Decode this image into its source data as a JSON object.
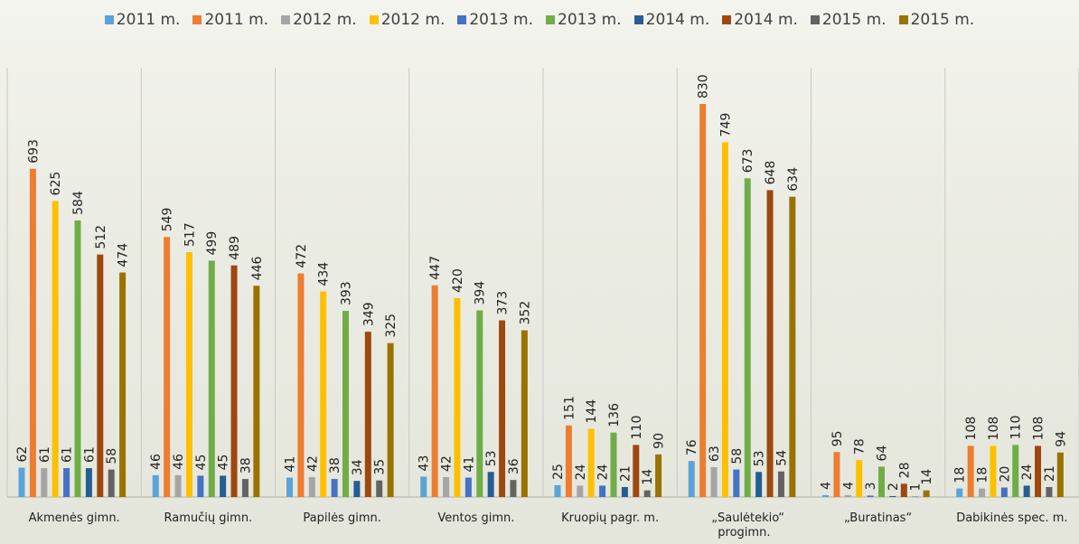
{
  "chart_data": {
    "type": "bar",
    "categories": [
      "Akmenės gimn.",
      "Ramučių gimn.",
      "Papilės gimn.",
      "Ventos gimn.",
      "Kruopių pagr. m.",
      "„Saulėtekio“ progimn.",
      "„Buratinas“",
      "Dabikinės spec. m."
    ],
    "series": [
      {
        "name": "2011 m.",
        "color": "#5ba3d9",
        "values": [
          62,
          46,
          41,
          43,
          25,
          76,
          4,
          18
        ]
      },
      {
        "name": "2011 m.",
        "color": "#ed7d31",
        "values": [
          693,
          549,
          472,
          447,
          151,
          830,
          95,
          108
        ]
      },
      {
        "name": "2012 m.",
        "color": "#a5a5a5",
        "values": [
          61,
          46,
          42,
          42,
          24,
          63,
          4,
          18
        ]
      },
      {
        "name": "2012 m.",
        "color": "#ffc000",
        "values": [
          625,
          517,
          434,
          420,
          144,
          749,
          78,
          108
        ]
      },
      {
        "name": "2013 m.",
        "color": "#4472c4",
        "values": [
          61,
          45,
          38,
          41,
          24,
          58,
          3,
          20
        ]
      },
      {
        "name": "2013 m.",
        "color": "#70ad47",
        "values": [
          584,
          499,
          393,
          394,
          136,
          673,
          64,
          110
        ]
      },
      {
        "name": "2014 m.",
        "color": "#255e91",
        "values": [
          61,
          45,
          34,
          53,
          21,
          53,
          2,
          24
        ]
      },
      {
        "name": "2014 m.",
        "color": "#9e480e",
        "values": [
          512,
          489,
          349,
          373,
          110,
          648,
          28,
          108
        ]
      },
      {
        "name": "2015 m.",
        "color": "#636363",
        "values": [
          58,
          38,
          35,
          36,
          14,
          54,
          1,
          21
        ]
      },
      {
        "name": "2015 m.",
        "color": "#997300",
        "values": [
          474,
          446,
          325,
          352,
          90,
          634,
          14,
          94
        ]
      }
    ]
  }
}
